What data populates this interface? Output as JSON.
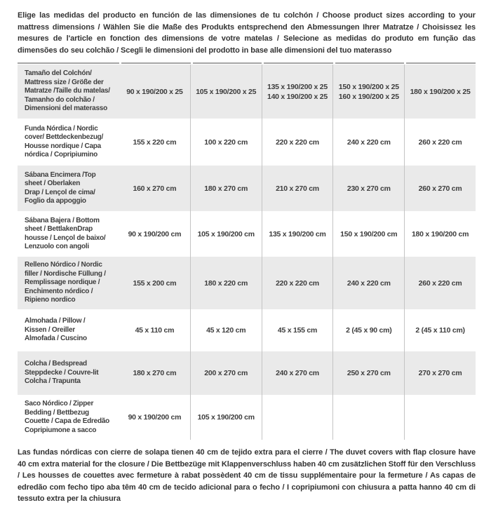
{
  "header": {
    "text": "Elige las medidas del producto en función de las dimensiones de tu colchón / Choose product sizes according to your mattress dimensions / Wählen Sie die Maße des Produkts entsprechend den Abmessungen Ihrer Matratze / Choisissez les mesures de l'article en fonction des dimensions de votre matelas / Selecione as medidas do produto em função das dimensões do seu colchão / Scegli le dimensioni del prodotto in base alle dimensioni del tuo materasso"
  },
  "table": {
    "rows": [
      {
        "label": "Tamaño del Colchón/\nMattress size / Größe der\nMatratze /Taille du matelas/\nTamanho do colchão /\nDimensioni del materasso",
        "values": [
          "90 x 190/200 x 25",
          "105 x 190/200 x 25",
          "135 x 190/200 x 25\n140 x 190/200 x 25",
          "150 x 190/200 x 25\n160 x 190/200 x 25",
          "180 x 190/200 x 25"
        ]
      },
      {
        "label": "Funda Nórdica /  Nordic\ncover/ Bettdeckenbezug/\nHousse nordique  / Capa\nnórdica / Copripiumino",
        "values": [
          "155 x 220 cm",
          "100 x 220 cm",
          "220 x 220 cm",
          "240 x 220 cm",
          "260 x 220 cm"
        ]
      },
      {
        "label": "Sábana Encimera /Top\nsheet / Oberlaken\nDrap / Lençol de cima/\nFoglio da appoggio",
        "values": [
          "160 x 270 cm",
          "180 x 270 cm",
          "210 x 270 cm",
          "230 x 270 cm",
          "260 x 270 cm"
        ]
      },
      {
        "label": "Sábana Bajera / Bottom\nsheet / BettlakenDrap\nhousse / Lençol de baixo/\nLenzuolo con angoli",
        "values": [
          "90 x 190/200 cm",
          "105 x 190/200 cm",
          "135 x 190/200 cm",
          "150 x 190/200 cm",
          "180 x 190/200 cm"
        ]
      },
      {
        "label": "Relleno Nórdico / Nordic\nfiller / Nordische Füllung /\nRemplissage nordique /\nEnchimento nórdico /\nRipieno nordico",
        "values": [
          "155 x 200 cm",
          "180 x 220 cm",
          "220 x 220 cm",
          "240 x 220 cm",
          "260 x 220 cm"
        ]
      },
      {
        "label": "Almohada  / Pillow /\nKissen / Oreiller\nAlmofada / Cuscino",
        "values": [
          "45 x 110 cm",
          "45 x 120 cm",
          "45 x 155 cm",
          "2 (45 x 90 cm)",
          "2 (45 x 110 cm)"
        ]
      },
      {
        "label": "Colcha / Bedspread\nSteppdecke / Couvre-lit\nColcha / Trapunta",
        "values": [
          "180 x 270 cm",
          "200 x 270 cm",
          "240 x 270 cm",
          "250 x 270 cm",
          "270 x 270 cm"
        ]
      },
      {
        "label": "Saco Nórdico / Zipper\nBedding / Bettbezug\nCouette  / Capa de Edredão\nCopripiumone a sacco",
        "values": [
          "90 x 190/200 cm",
          "105 x 190/200 cm",
          "",
          "",
          ""
        ]
      }
    ]
  },
  "footer": {
    "text": "Las fundas nórdicas con cierre de solapa tienen 40 cm de tejido extra para el cierre  /  The duvet covers with flap closure have 40 cm extra material for the closure / Die Bettbezüge mit Klappenverschluss haben 40 cm zusätzlichen Stoff für den Verschluss / Les housses de couettes avec fermeture à rabat possèdent 40 cm de tissu supplémentaire pour la fermeture / As capas de edredão com fecho tipo aba têm 40 cm de tecido adicional para o fecho / I copripiumoni con chiusura a patta hanno 40 cm di tessuto extra per la chiusura"
  },
  "colors": {
    "row_shade": "#eaeaea",
    "divider": "#c4c4c4",
    "text": "#3d3d3d"
  }
}
